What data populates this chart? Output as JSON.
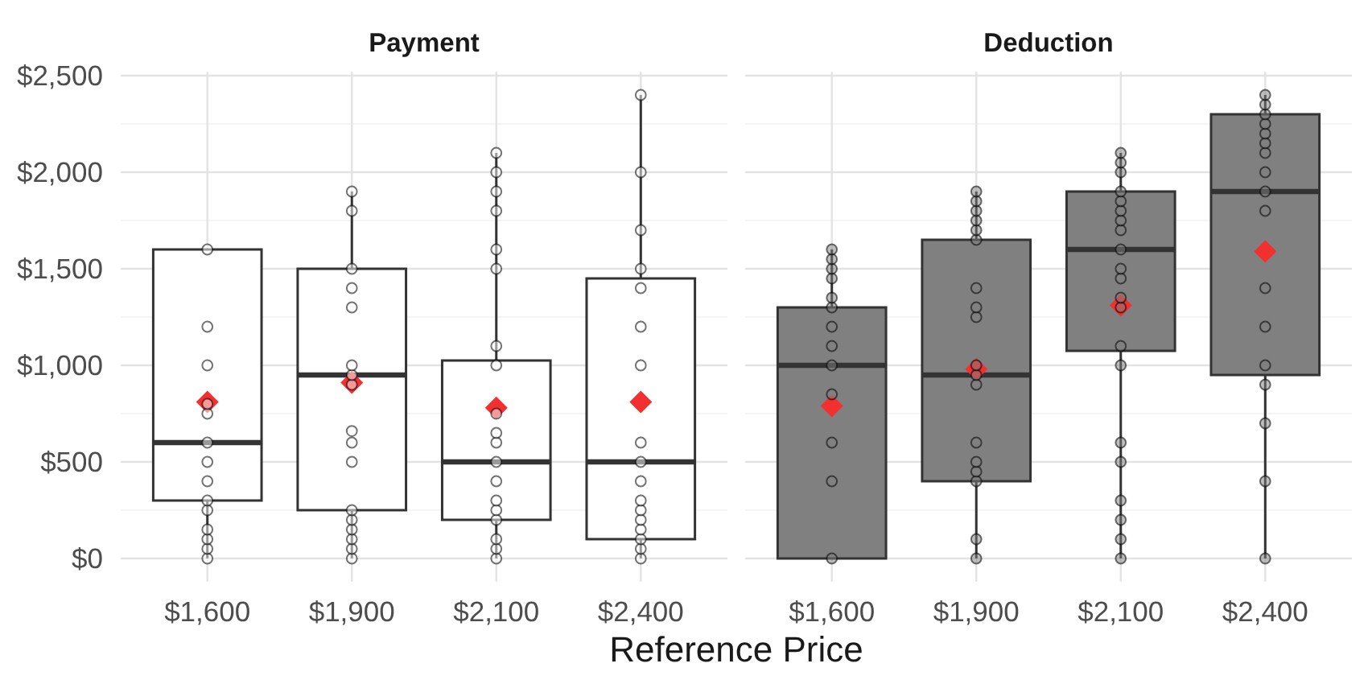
{
  "chart_data": [
    {
      "type": "box",
      "title": "Payment",
      "xlabel": "Reference Price",
      "categories": [
        "$1,600",
        "$1,900",
        "$2,100",
        "$2,400"
      ],
      "ylim": [
        -120,
        2520
      ],
      "yticks": [
        {
          "value": 0,
          "label": "$0"
        },
        {
          "value": 500,
          "label": "$500"
        },
        {
          "value": 1000,
          "label": "$1,000"
        },
        {
          "value": 1500,
          "label": "$1,500"
        },
        {
          "value": 2000,
          "label": "$2,000"
        },
        {
          "value": 2500,
          "label": "$2,500"
        }
      ],
      "grid": true,
      "marker": "circle",
      "series": [
        {
          "color": "#ffffff",
          "boxes": [
            {
              "low": 0,
              "q1": 300,
              "median": 600,
              "q3": 1600,
              "high": 1600,
              "mean": 810
            },
            {
              "low": 0,
              "q1": 250,
              "median": 950,
              "q3": 1500,
              "high": 1900,
              "mean": 910
            },
            {
              "low": 0,
              "q1": 200,
              "median": 500,
              "q3": 1025,
              "high": 2100,
              "mean": 780
            },
            {
              "low": 0,
              "q1": 100,
              "median": 500,
              "q3": 1450,
              "high": 2400,
              "mean": 810
            }
          ]
        },
        {
          "type": "scatter",
          "color": "#ffffff",
          "x": [
            "$1,600",
            "$1,600",
            "$1,600",
            "$1,600",
            "$1,600",
            "$1,600",
            "$1,600",
            "$1,600",
            "$1,600",
            "$1,600",
            "$1,600",
            "$1,600",
            "$1,600",
            "$1,600",
            "$1,900",
            "$1,900",
            "$1,900",
            "$1,900",
            "$1,900",
            "$1,900",
            "$1,900",
            "$1,900",
            "$1,900",
            "$1,900",
            "$1,900",
            "$1,900",
            "$1,900",
            "$1,900",
            "$1,900",
            "$1,900",
            "$1,900",
            "$2,100",
            "$2,100",
            "$2,100",
            "$2,100",
            "$2,100",
            "$2,100",
            "$2,100",
            "$2,100",
            "$2,100",
            "$2,100",
            "$2,100",
            "$2,100",
            "$2,100",
            "$2,100",
            "$2,100",
            "$2,100",
            "$2,100",
            "$2,100",
            "$2,100",
            "$2,400",
            "$2,400",
            "$2,400",
            "$2,400",
            "$2,400",
            "$2,400",
            "$2,400",
            "$2,400",
            "$2,400",
            "$2,400",
            "$2,400",
            "$2,400",
            "$2,400",
            "$2,400",
            "$2,400",
            "$2,400",
            "$2,400"
          ],
          "values": [
            0,
            50,
            100,
            150,
            250,
            300,
            400,
            500,
            600,
            750,
            800,
            1000,
            1200,
            1600,
            0,
            50,
            100,
            150,
            200,
            250,
            500,
            600,
            660,
            900,
            950,
            1000,
            1300,
            1400,
            1500,
            1800,
            1900,
            0,
            50,
            100,
            200,
            250,
            300,
            400,
            500,
            600,
            650,
            750,
            1000,
            1100,
            1500,
            1600,
            1800,
            1900,
            2000,
            2100,
            0,
            50,
            100,
            150,
            200,
            250,
            300,
            400,
            500,
            600,
            1000,
            1200,
            1400,
            1500,
            1700,
            2000,
            2400
          ]
        }
      ]
    },
    {
      "type": "box",
      "title": "Deduction",
      "categories": [
        "$1,600",
        "$1,900",
        "$2,100",
        "$2,400"
      ],
      "ylim": [
        -120,
        2520
      ],
      "yticks": [
        0,
        500,
        1000,
        1500,
        2000,
        2500
      ],
      "tick_labels": "x",
      "grid": true,
      "marker": "circle",
      "series": [
        {
          "color": "#808080",
          "boxes": [
            {
              "low": 0,
              "q1": 0,
              "median": 1000,
              "q3": 1300,
              "high": 1600,
              "mean": 790
            },
            {
              "low": 0,
              "q1": 400,
              "median": 950,
              "q3": 1650,
              "high": 1900,
              "mean": 980
            },
            {
              "low": 0,
              "q1": 1075,
              "median": 1600,
              "q3": 1900,
              "high": 2100,
              "mean": 1310
            },
            {
              "low": 0,
              "q1": 950,
              "median": 1900,
              "q3": 2300,
              "high": 2400,
              "mean": 1590
            }
          ]
        },
        {
          "type": "scatter",
          "color": "#808080",
          "x": [
            "$1,600",
            "$1,600",
            "$1,600",
            "$1,600",
            "$1,600",
            "$1,600",
            "$1,600",
            "$1,600",
            "$1,600",
            "$1,600",
            "$1,600",
            "$1,600",
            "$1,600",
            "$1,900",
            "$1,900",
            "$1,900",
            "$1,900",
            "$1,900",
            "$1,900",
            "$1,900",
            "$1,900",
            "$1,900",
            "$1,900",
            "$1,900",
            "$1,900",
            "$1,900",
            "$1,900",
            "$1,900",
            "$1,900",
            "$1,900",
            "$1,900",
            "$2,100",
            "$2,100",
            "$2,100",
            "$2,100",
            "$2,100",
            "$2,100",
            "$2,100",
            "$2,100",
            "$2,100",
            "$2,100",
            "$2,100",
            "$2,100",
            "$2,100",
            "$2,100",
            "$2,100",
            "$2,100",
            "$2,100",
            "$2,100",
            "$2,100",
            "$2,100",
            "$2,100",
            "$2,400",
            "$2,400",
            "$2,400",
            "$2,400",
            "$2,400",
            "$2,400",
            "$2,400",
            "$2,400",
            "$2,400",
            "$2,400",
            "$2,400",
            "$2,400",
            "$2,400",
            "$2,400",
            "$2,400",
            "$2,400",
            "$2,400"
          ],
          "values": [
            0,
            400,
            600,
            850,
            1000,
            1100,
            1200,
            1300,
            1350,
            1450,
            1500,
            1550,
            1600,
            0,
            100,
            400,
            450,
            500,
            600,
            900,
            950,
            1000,
            1250,
            1300,
            1400,
            1650,
            1700,
            1750,
            1800,
            1850,
            1900,
            0,
            100,
            200,
            300,
            500,
            600,
            1000,
            1100,
            1300,
            1350,
            1450,
            1500,
            1600,
            1700,
            1750,
            1800,
            1850,
            1900,
            2000,
            2050,
            2100,
            0,
            400,
            700,
            900,
            1000,
            1200,
            1400,
            1800,
            1900,
            2000,
            2100,
            2150,
            2200,
            2250,
            2300,
            2350,
            2400
          ]
        }
      ]
    }
  ]
}
